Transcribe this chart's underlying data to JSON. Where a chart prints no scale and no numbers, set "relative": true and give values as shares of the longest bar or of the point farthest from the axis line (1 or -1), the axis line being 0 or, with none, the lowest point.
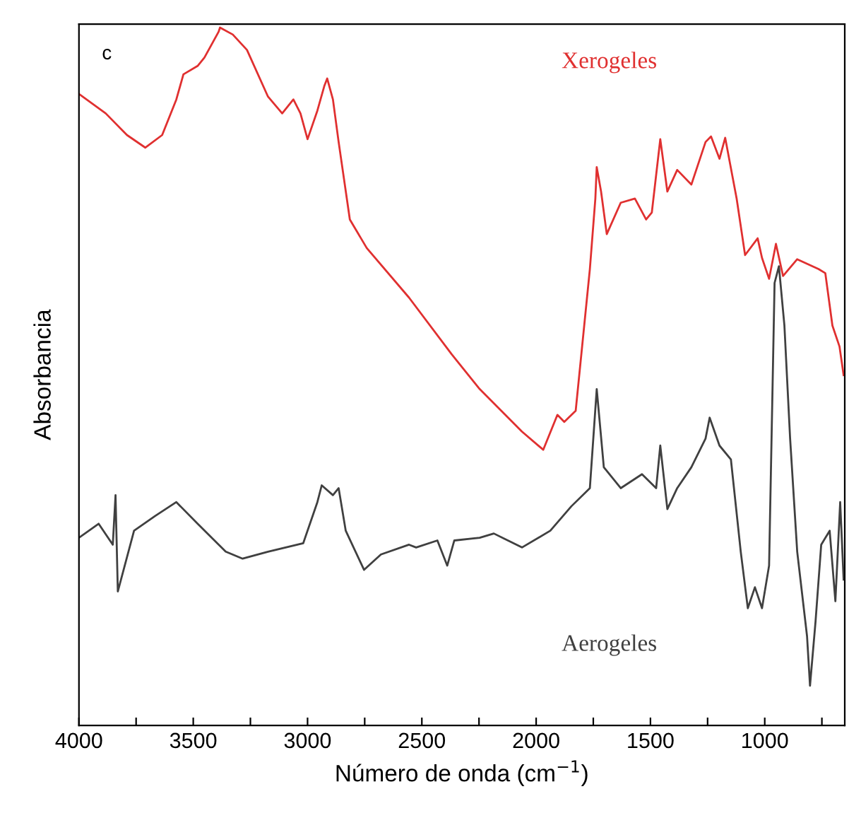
{
  "chart_data": {
    "type": "line",
    "relative": true,
    "xlabel": "Número de onda (cm$^{−1}$)",
    "ylabel": "Absorbancia",
    "annotations": [
      "c"
    ],
    "xlim": [
      4000,
      650
    ],
    "xticks": [
      4000,
      {
        "value": 3750,
        "label": null
      },
      3500,
      {
        "value": 3250,
        "label": null
      },
      3000,
      {
        "value": 2750,
        "label": null
      },
      2500,
      {
        "value": 2250,
        "label": null
      },
      2000,
      {
        "value": 1750,
        "label": null
      },
      1500,
      {
        "value": 1250,
        "label": null
      },
      1000,
      {
        "value": 750,
        "label": null
      }
    ],
    "tick_labels": "x",
    "grid": false,
    "legend": false,
    "marker": "none",
    "line_style": "solid",
    "series": [
      {
        "name": "Xerogeles",
        "color": "#e03030",
        "x": [
          4000,
          3883,
          3790,
          3710,
          3636,
          3574,
          3543,
          3481,
          3451,
          3389,
          3383,
          3327,
          3265,
          3173,
          3111,
          3062,
          3031,
          3000,
          2957,
          2926,
          2914,
          2889,
          2864,
          2815,
          2741,
          2556,
          2370,
          2247,
          2062,
          1969,
          1907,
          1877,
          1827,
          1765,
          1741,
          1735,
          1716,
          1691,
          1630,
          1568,
          1519,
          1494,
          1457,
          1426,
          1383,
          1321,
          1259,
          1235,
          1198,
          1173,
          1123,
          1086,
          1031,
          1012,
          981,
          951,
          920,
          858,
          765,
          735,
          704,
          673,
          655
        ],
        "values": [
          0.905,
          0.877,
          0.846,
          0.828,
          0.846,
          0.897,
          0.933,
          0.945,
          0.957,
          0.994,
          1.0,
          0.99,
          0.968,
          0.901,
          0.877,
          0.897,
          0.877,
          0.84,
          0.881,
          0.917,
          0.927,
          0.897,
          0.836,
          0.725,
          0.684,
          0.613,
          0.532,
          0.482,
          0.421,
          0.395,
          0.445,
          0.435,
          0.451,
          0.654,
          0.755,
          0.8,
          0.765,
          0.704,
          0.749,
          0.755,
          0.725,
          0.735,
          0.84,
          0.765,
          0.796,
          0.775,
          0.836,
          0.844,
          0.812,
          0.842,
          0.755,
          0.674,
          0.698,
          0.67,
          0.64,
          0.69,
          0.644,
          0.668,
          0.654,
          0.648,
          0.573,
          0.543,
          0.502
        ]
      },
      {
        "name": "Aerogeles",
        "color": "#404040",
        "x": [
          4000,
          3914,
          3852,
          3840,
          3830,
          3759,
          3667,
          3574,
          3481,
          3358,
          3284,
          3173,
          3019,
          2957,
          2938,
          2889,
          2864,
          2833,
          2753,
          2679,
          2556,
          2525,
          2432,
          2389,
          2358,
          2247,
          2185,
          2062,
          1938,
          1846,
          1765,
          1735,
          1704,
          1630,
          1537,
          1475,
          1457,
          1426,
          1383,
          1321,
          1259,
          1241,
          1198,
          1148,
          1105,
          1074,
          1043,
          1012,
          981,
          957,
          938,
          914,
          889,
          858,
          815,
          802,
          778,
          753,
          716,
          691,
          670,
          655
        ],
        "values": [
          0.269,
          0.289,
          0.259,
          0.33,
          0.192,
          0.279,
          0.3,
          0.32,
          0.289,
          0.249,
          0.239,
          0.249,
          0.261,
          0.32,
          0.344,
          0.33,
          0.34,
          0.279,
          0.223,
          0.245,
          0.259,
          0.255,
          0.265,
          0.229,
          0.265,
          0.269,
          0.275,
          0.255,
          0.279,
          0.314,
          0.34,
          0.482,
          0.37,
          0.34,
          0.36,
          0.34,
          0.401,
          0.31,
          0.34,
          0.37,
          0.411,
          0.441,
          0.401,
          0.381,
          0.249,
          0.168,
          0.198,
          0.168,
          0.229,
          0.634,
          0.658,
          0.573,
          0.411,
          0.249,
          0.128,
          0.057,
          0.148,
          0.259,
          0.279,
          0.178,
          0.32,
          0.209
        ]
      }
    ]
  }
}
